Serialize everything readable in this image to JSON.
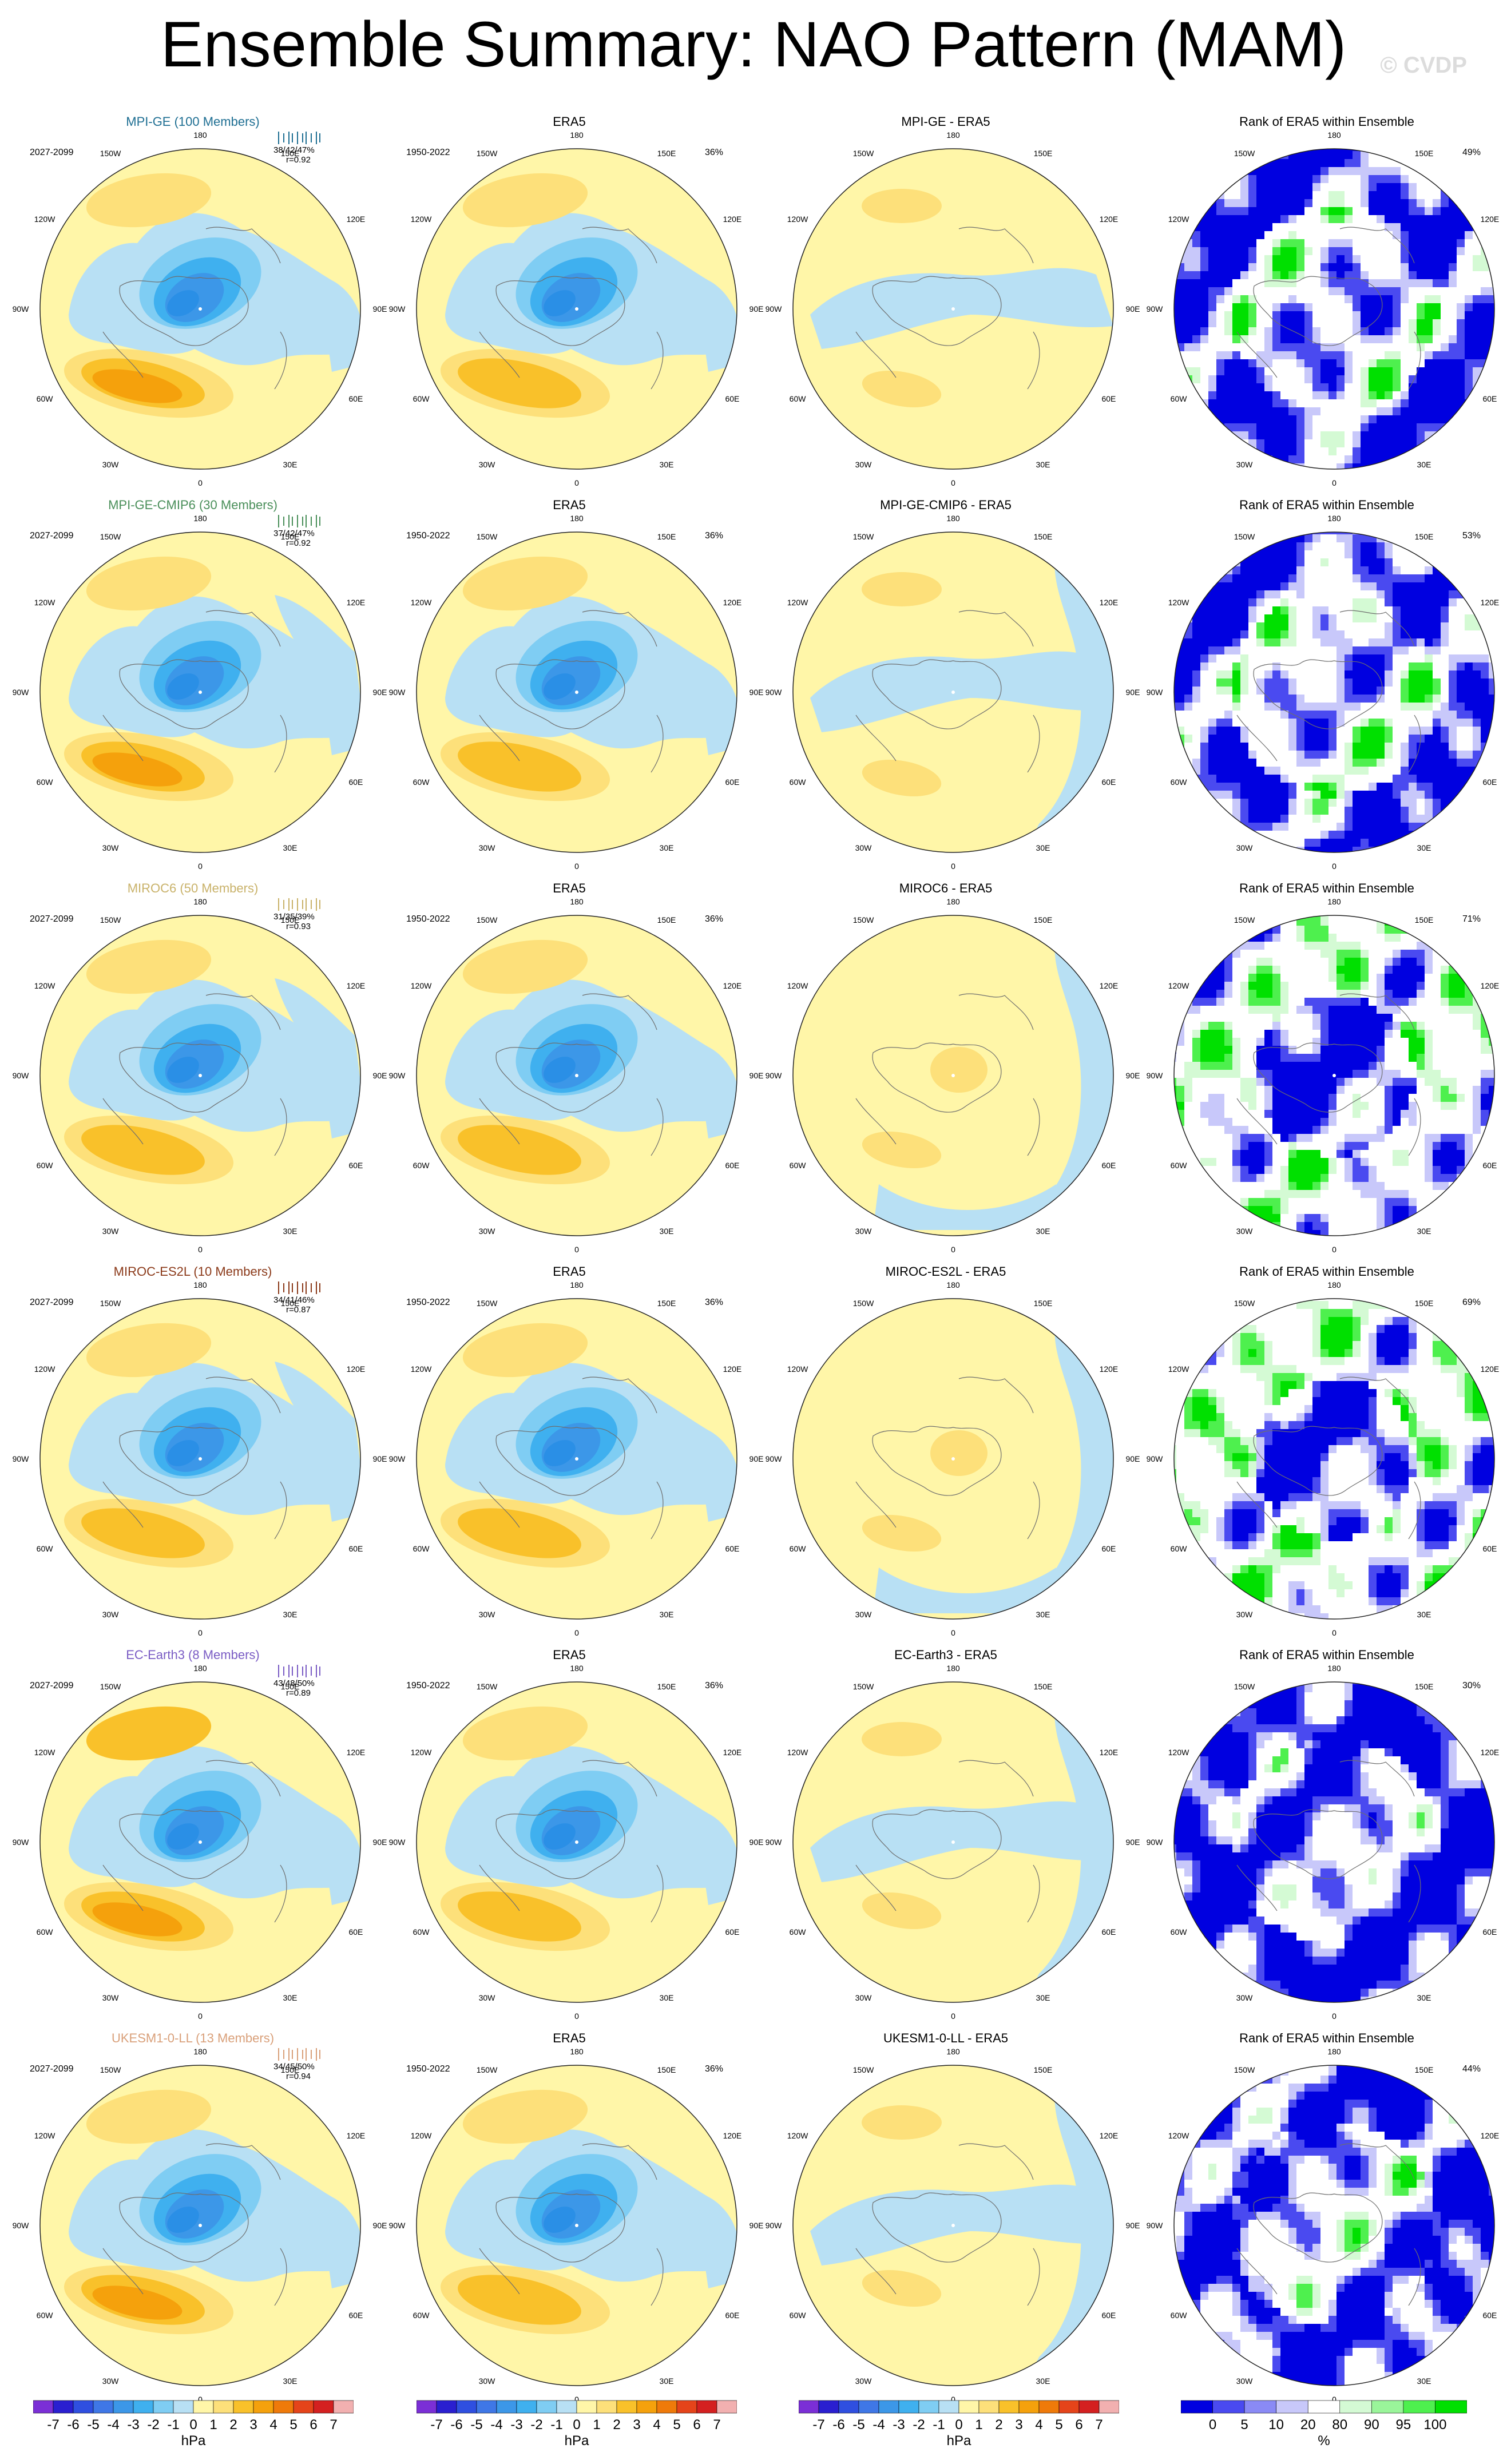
{
  "title": "Ensemble Summary: NAO Pattern (MAM)",
  "watermark": "© CVDP",
  "lon_labels": {
    "top": "180",
    "bottom": "0",
    "upper_left": "150W",
    "upper_right": "150E",
    "mid_upper_left": "120W",
    "mid_upper_right": "120E",
    "left": "90W",
    "right": "90E",
    "mid_lower_left": "60W",
    "mid_lower_right": "60E",
    "lower_left": "30W",
    "lower_right": "30E"
  },
  "era5": {
    "title": "ERA5",
    "years": "1950-2022",
    "pct": "36%"
  },
  "rank_title": "Rank of ERA5 within Ensemble",
  "rows": [
    {
      "model": "MPI-GE (100 Members)",
      "color": "#1f6f93",
      "years": "2027-2099",
      "stats": "38/42/47%",
      "r": "r=0.92",
      "diff_title": "MPI-GE - ERA5",
      "rank_pct": "49%"
    },
    {
      "model": "MPI-GE-CMIP6 (30 Members)",
      "color": "#4a8f5a",
      "years": "2027-2099",
      "stats": "37/42/47%",
      "r": "r=0.92",
      "diff_title": "MPI-GE-CMIP6 - ERA5",
      "rank_pct": "53%"
    },
    {
      "model": "MIROC6 (50 Members)",
      "color": "#c9b26a",
      "years": "2027-2099",
      "stats": "31/35/39%",
      "r": "r=0.93",
      "diff_title": "MIROC6 - ERA5",
      "rank_pct": "71%"
    },
    {
      "model": "MIROC-ES2L (10 Members)",
      "color": "#8b3a1a",
      "years": "2027-2099",
      "stats": "34/41/46%",
      "r": "r=0.87",
      "diff_title": "MIROC-ES2L - ERA5",
      "rank_pct": "69%"
    },
    {
      "model": "EC-Earth3 (8 Members)",
      "color": "#7a5cc4",
      "years": "2027-2099",
      "stats": "43/48/50%",
      "r": "r=0.89",
      "diff_title": "EC-Earth3 - ERA5",
      "rank_pct": "30%"
    },
    {
      "model": "UKESM1-0-LL (13 Members)",
      "color": "#d9a07a",
      "years": "2027-2099",
      "stats": "34/45/50%",
      "r": "r=0.94",
      "diff_title": "UKESM1-0-LL - ERA5",
      "rank_pct": "44%"
    }
  ],
  "colorbar_hpa": {
    "labels": [
      "-7",
      "-6",
      "-5",
      "-4",
      "-3",
      "-2",
      "-1",
      "0",
      "1",
      "2",
      "3",
      "4",
      "5",
      "6",
      "7"
    ],
    "colors": [
      "#7b2fd6",
      "#2a1fd0",
      "#2f4fe0",
      "#3f77e6",
      "#3c97e8",
      "#3fb0ef",
      "#7fcdf3",
      "#b8e0f4",
      "#fff6a8",
      "#fde07a",
      "#f9c12a",
      "#f5a10c",
      "#ef7a0a",
      "#e5441a",
      "#d42020",
      "#f2b0b0"
    ],
    "unit": "hPa"
  },
  "colorbar_rank": {
    "labels": [
      "0",
      "5",
      "10",
      "20",
      "80",
      "90",
      "95",
      "100"
    ],
    "colors": [
      "#0000e0",
      "#4a4af0",
      "#8a8af5",
      "#c8c8fa",
      "#ffffff",
      "#d4fad4",
      "#9af59a",
      "#4ef04e",
      "#00e000"
    ],
    "unit": "%"
  }
}
